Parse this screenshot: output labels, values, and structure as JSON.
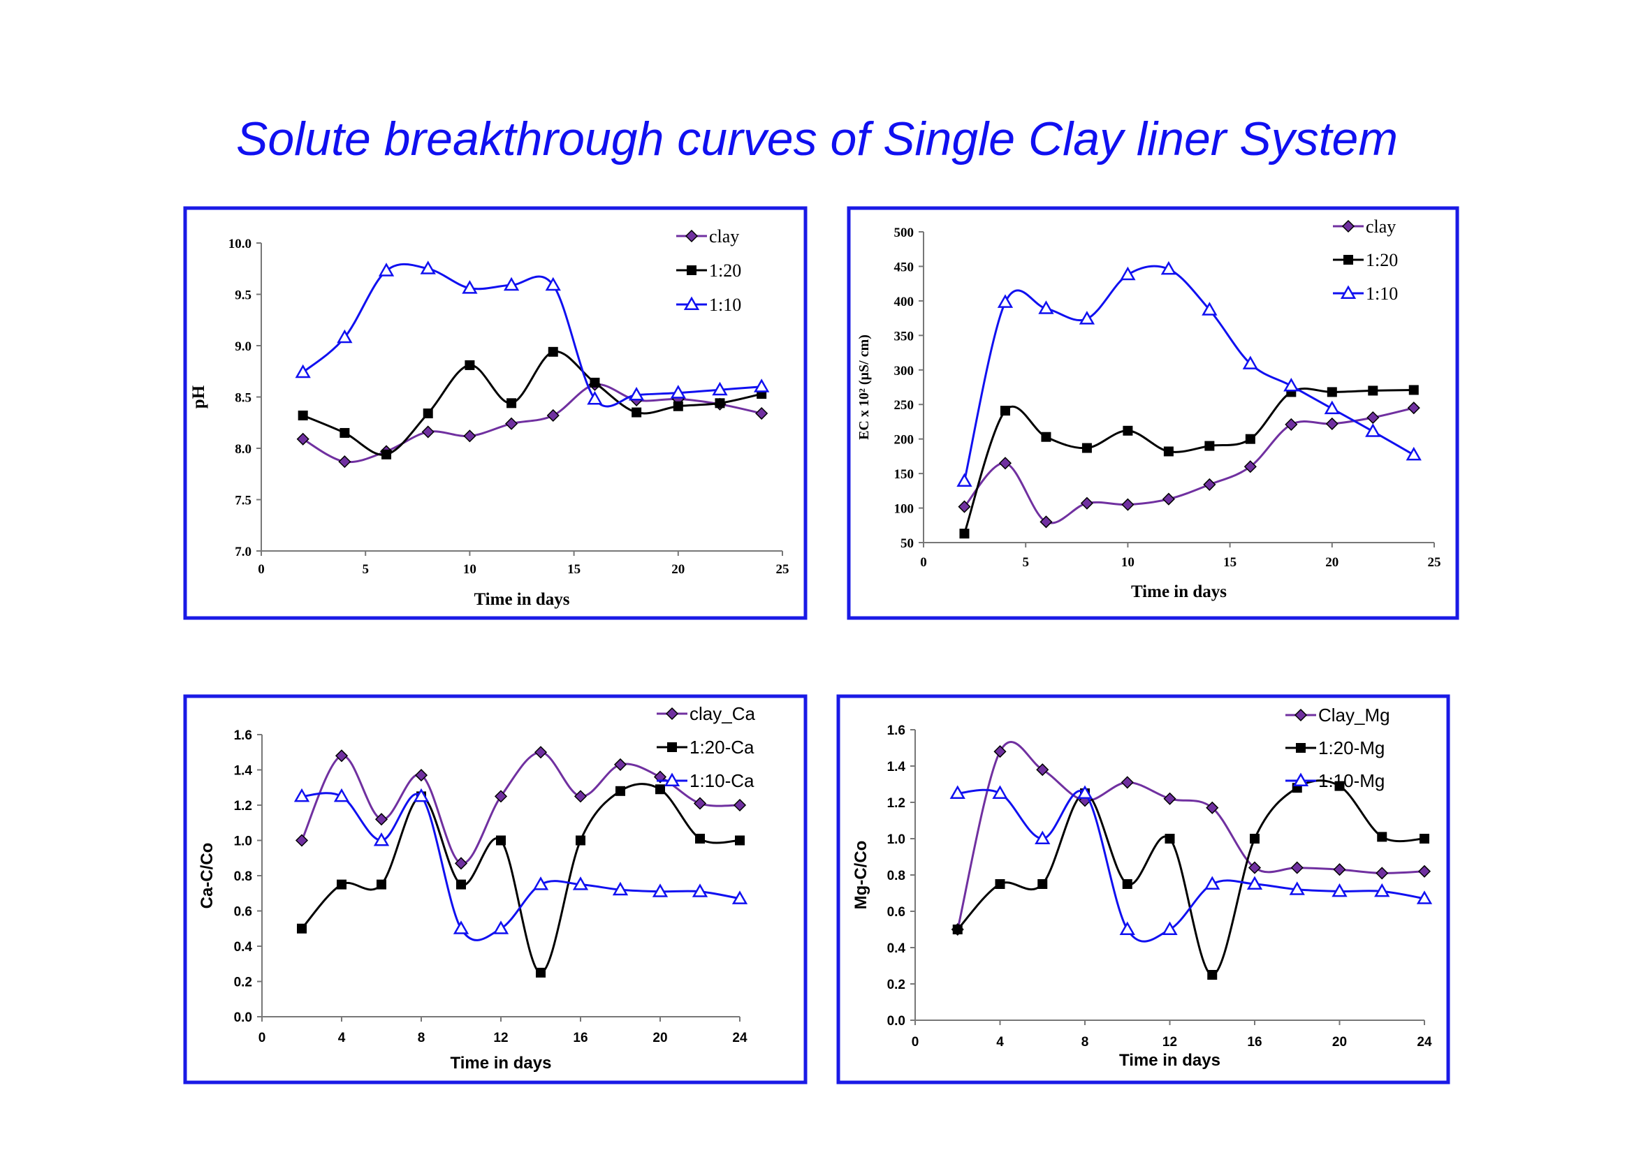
{
  "title": "Solute breakthrough curves of Single  Clay liner System",
  "colors": {
    "clay": "#7030a0",
    "ratio_1_20": "#000000",
    "ratio_1_10": "#1010f0",
    "frame": "#1a1ae6"
  },
  "chart_data": [
    {
      "type": "line",
      "id": "ph",
      "title": "",
      "xlabel": "Time in days",
      "ylabel": "pH",
      "xlim": [
        0,
        25
      ],
      "ylim": [
        7.0,
        10.0
      ],
      "xticks": [
        "0",
        "5",
        "10",
        "15",
        "20",
        "25"
      ],
      "yticks": [
        "7.0",
        "7.5",
        "8.0",
        "8.5",
        "9.0",
        "9.5",
        "10.0"
      ],
      "legend_position": "top-right",
      "series": [
        {
          "name": "clay",
          "marker": "diamond",
          "color": "#7030a0",
          "x": [
            2,
            4,
            6,
            8,
            10,
            12,
            14,
            16,
            18,
            20,
            22,
            24
          ],
          "y": [
            8.09,
            7.87,
            7.97,
            8.16,
            8.12,
            8.24,
            8.32,
            8.62,
            8.47,
            8.48,
            8.43,
            8.34
          ]
        },
        {
          "name": "1:20",
          "marker": "square",
          "color": "#000000",
          "x": [
            2,
            4,
            6,
            8,
            10,
            12,
            14,
            16,
            18,
            20,
            22,
            24
          ],
          "y": [
            8.32,
            8.15,
            7.94,
            8.34,
            8.81,
            8.44,
            8.94,
            8.64,
            8.35,
            8.41,
            8.44,
            8.53
          ]
        },
        {
          "name": "1:10",
          "marker": "triangle",
          "color": "#1010f0",
          "x": [
            2,
            4,
            6,
            8,
            10,
            12,
            14,
            16,
            18,
            20,
            22,
            24
          ],
          "y": [
            8.74,
            9.08,
            9.73,
            9.75,
            9.56,
            9.59,
            9.59,
            8.48,
            8.52,
            8.54,
            8.57,
            8.6
          ]
        }
      ]
    },
    {
      "type": "line",
      "id": "ec",
      "title": "",
      "xlabel": "Time in days",
      "ylabel": "EC x 10² (µS/ cm)",
      "xlim": [
        0,
        25
      ],
      "ylim": [
        50,
        500
      ],
      "xticks": [
        "0",
        "5",
        "10",
        "15",
        "20",
        "25"
      ],
      "yticks": [
        "50",
        "100",
        "150",
        "200",
        "250",
        "300",
        "350",
        "400",
        "450",
        "500"
      ],
      "legend_position": "top-right",
      "series": [
        {
          "name": "clay",
          "marker": "diamond",
          "color": "#7030a0",
          "x": [
            2,
            4,
            6,
            8,
            10,
            12,
            14,
            16,
            18,
            20,
            22,
            24
          ],
          "y": [
            102,
            165,
            80,
            107,
            105,
            113,
            134,
            160,
            221,
            222,
            231,
            245
          ]
        },
        {
          "name": "1:20",
          "marker": "square",
          "color": "#000000",
          "x": [
            2,
            4,
            6,
            8,
            10,
            12,
            14,
            16,
            18,
            20,
            22,
            24
          ],
          "y": [
            63,
            241,
            203,
            187,
            212,
            182,
            190,
            200,
            268,
            268,
            270,
            271
          ]
        },
        {
          "name": "1:10",
          "marker": "triangle",
          "color": "#1010f0",
          "x": [
            2,
            4,
            6,
            8,
            10,
            12,
            14,
            16,
            18,
            20,
            22,
            24
          ],
          "y": [
            139,
            398,
            389,
            374,
            438,
            446,
            387,
            309,
            277,
            244,
            211,
            177
          ]
        }
      ]
    },
    {
      "type": "line",
      "id": "ca",
      "title": "",
      "xlabel": "Time in days",
      "ylabel": "Ca-C/Co",
      "xlim": [
        0,
        24
      ],
      "ylim": [
        0.0,
        1.6
      ],
      "xticks": [
        "0",
        "4",
        "8",
        "12",
        "16",
        "20",
        "24"
      ],
      "yticks": [
        "0.0",
        "0.2",
        "0.4",
        "0.6",
        "0.8",
        "1.0",
        "1.2",
        "1.4",
        "1.6"
      ],
      "legend_position": "top-right",
      "series": [
        {
          "name": "clay_Ca",
          "marker": "diamond",
          "color": "#7030a0",
          "x": [
            2,
            4,
            6,
            8,
            10,
            12,
            14,
            16,
            18,
            20,
            22,
            24
          ],
          "y": [
            1.0,
            1.48,
            1.12,
            1.37,
            0.87,
            1.25,
            1.5,
            1.25,
            1.43,
            1.36,
            1.21,
            1.2
          ]
        },
        {
          "name": "1:20-Ca",
          "marker": "square",
          "color": "#000000",
          "x": [
            2,
            4,
            6,
            8,
            10,
            12,
            14,
            16,
            18,
            20,
            22,
            24
          ],
          "y": [
            0.5,
            0.75,
            0.75,
            1.25,
            0.75,
            1.0,
            0.25,
            1.0,
            1.28,
            1.29,
            1.01,
            1.0
          ]
        },
        {
          "name": "1:10-Ca",
          "marker": "triangle",
          "color": "#1010f0",
          "x": [
            2,
            4,
            6,
            8,
            10,
            12,
            14,
            16,
            18,
            20,
            22,
            24
          ],
          "y": [
            1.25,
            1.25,
            1.0,
            1.25,
            0.5,
            0.5,
            0.75,
            0.75,
            0.72,
            0.71,
            0.71,
            0.67
          ]
        }
      ]
    },
    {
      "type": "line",
      "id": "mg",
      "title": "",
      "xlabel": "Time in days",
      "ylabel": "Mg-C/Co",
      "xlim": [
        0,
        24
      ],
      "ylim": [
        0.0,
        1.6
      ],
      "xticks": [
        "0",
        "4",
        "8",
        "12",
        "16",
        "20",
        "24"
      ],
      "yticks": [
        "0.0",
        "0.2",
        "0.4",
        "0.6",
        "0.8",
        "1.0",
        "1.2",
        "1.4",
        "1.6"
      ],
      "legend_position": "top-right",
      "series": [
        {
          "name": "Clay_Mg",
          "marker": "diamond",
          "color": "#7030a0",
          "x": [
            2,
            4,
            6,
            8,
            10,
            12,
            14,
            16,
            18,
            20,
            22,
            24
          ],
          "y": [
            0.5,
            1.48,
            1.38,
            1.21,
            1.31,
            1.22,
            1.17,
            0.84,
            0.84,
            0.83,
            0.81,
            0.82
          ]
        },
        {
          "name": "1:20-Mg",
          "marker": "square",
          "color": "#000000",
          "x": [
            2,
            4,
            6,
            8,
            10,
            12,
            14,
            16,
            18,
            20,
            22,
            24
          ],
          "y": [
            0.5,
            0.75,
            0.75,
            1.25,
            0.75,
            1.0,
            0.25,
            1.0,
            1.28,
            1.29,
            1.01,
            1.0
          ]
        },
        {
          "name": "1:10-Mg",
          "marker": "triangle",
          "color": "#1010f0",
          "x": [
            2,
            4,
            6,
            8,
            10,
            12,
            14,
            16,
            18,
            20,
            22,
            24
          ],
          "y": [
            1.25,
            1.25,
            1.0,
            1.25,
            0.5,
            0.5,
            0.75,
            0.75,
            0.72,
            0.71,
            0.71,
            0.67
          ]
        }
      ]
    }
  ]
}
